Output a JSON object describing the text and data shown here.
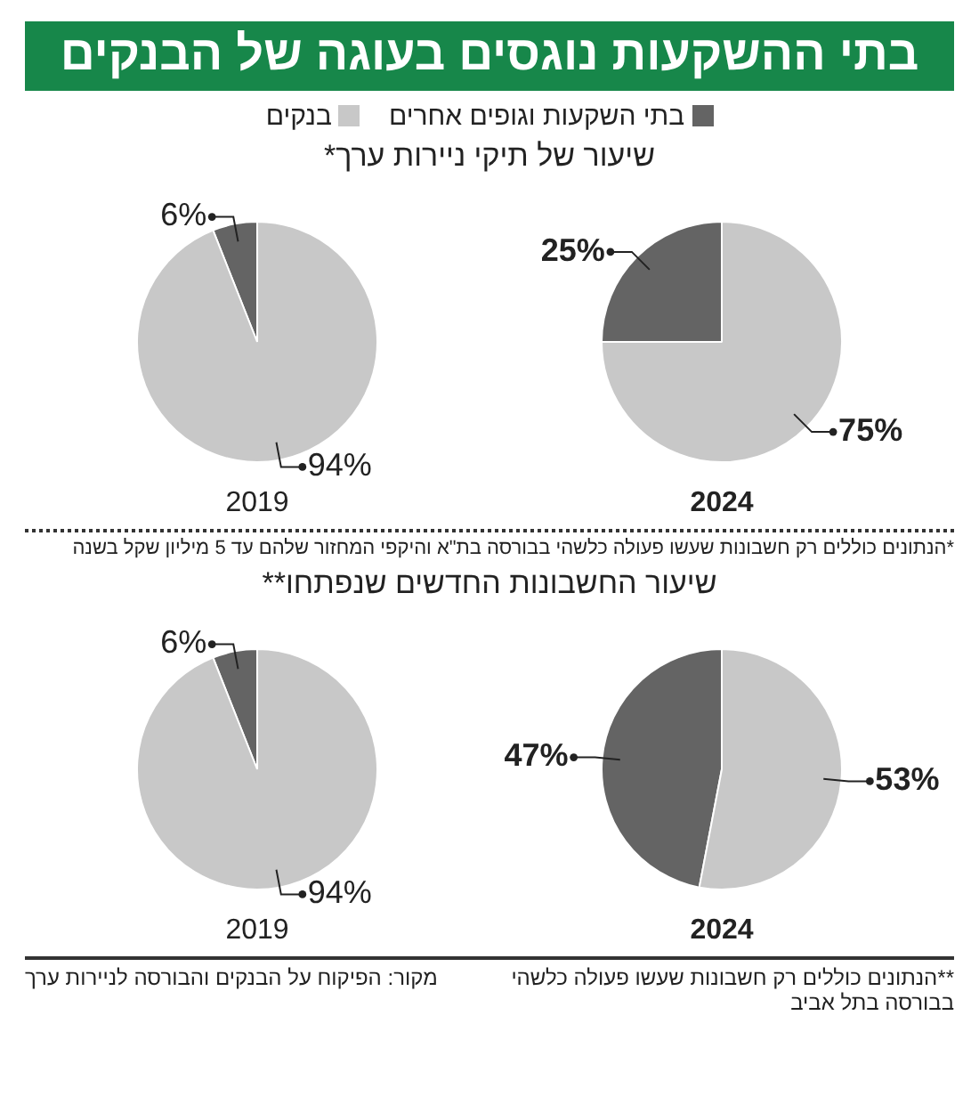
{
  "chart_data": [
    {
      "type": "pie",
      "title": "בתי ההשקעות נוגסים בעוגה של הבנקים",
      "subtitle": "שיעור של תיקי ניירות ערך*",
      "xlabel": "2019",
      "legend": "top",
      "categories": [
        "בתי השקעות וגופים אחרים",
        "בנקים"
      ],
      "values": [
        6,
        94
      ],
      "colors": [
        "#646464",
        "#c8c8c8"
      ],
      "value_labels": [
        "6%",
        "94%"
      ]
    },
    {
      "type": "pie",
      "xlabel": "2024",
      "categories": [
        null,
        null
      ],
      "values": [
        25,
        75
      ],
      "colors": [
        "#646464",
        "#c8c8c8"
      ],
      "value_labels": [
        "25%",
        "75%"
      ],
      "annotations": [
        "*הנתונים כוללים רק חשבונות שעשו פעולה כלשהי בבורסה בת\"א והיקפי המחזור שלהם עד 5 מיליון שקל בשנה"
      ]
    },
    {
      "type": "pie",
      "subtitle": "שיעור החשבונות החדשים שנפתחו**",
      "xlabel": "2019",
      "categories": [
        null,
        null
      ],
      "values": [
        6,
        94
      ],
      "colors": [
        "#646464",
        "#c8c8c8"
      ],
      "value_labels": [
        "6%",
        "94%"
      ]
    },
    {
      "type": "pie",
      "xlabel": "2024",
      "categories": [
        null,
        null
      ],
      "values": [
        47,
        53
      ],
      "colors": [
        "#646464",
        "#c8c8c8"
      ],
      "value_labels": [
        "47%",
        "53%"
      ],
      "annotations": [
        "**הנתונים כוללים רק חשבונות שעשו פעולה כלשהי בבורסה בתל אביב",
        "מקור: הפיקוח על הבנקים והבורסה לניירות ערך"
      ]
    }
  ]
}
